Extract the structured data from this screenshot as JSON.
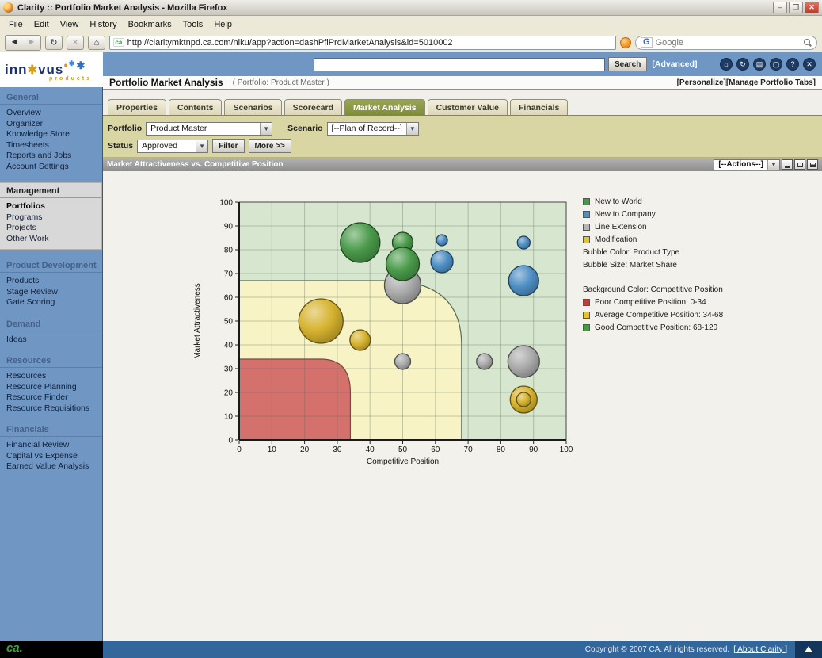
{
  "window": {
    "title": "Clarity :: Portfolio Market Analysis - Mozilla Firefox",
    "controls": {
      "minimize": "–",
      "restore": "❒",
      "close": "✕"
    }
  },
  "menubar": {
    "items": [
      "File",
      "Edit",
      "View",
      "History",
      "Bookmarks",
      "Tools",
      "Help"
    ]
  },
  "toolbar": {
    "url": "http://claritymktnpd.ca.com/niku/app?action=dashPflPrdMarketAnalysis&id=5010002",
    "search_engine": "Google"
  },
  "app_header": {
    "logo_text_left": "inn",
    "logo_text_right": "vus",
    "logo_sub": "products",
    "search_value": "",
    "search_button": "Search",
    "advanced_link": "[Advanced]",
    "icons": [
      "home-icon",
      "refresh-icon",
      "document-icon",
      "window-icon",
      "help-icon",
      "logout-icon"
    ],
    "icon_glyphs": [
      "⌂",
      "↻",
      "▤",
      "▢",
      "?",
      "✕"
    ]
  },
  "page": {
    "title": "Portfolio Market Analysis",
    "subtitle": "( Portfolio: Product Master )",
    "personalize_link": "[Personalize]",
    "manage_link": "[Manage Portfolio Tabs]"
  },
  "sidebar": {
    "sections": [
      {
        "header": "General",
        "items": [
          "Overview",
          "Organizer",
          "Knowledge Store",
          "Timesheets",
          "Reports and Jobs",
          "Account Settings"
        ]
      },
      {
        "header": "Management",
        "highlight": true,
        "active_item": "Portfolios",
        "items": [
          "Portfolios",
          "Programs",
          "Projects",
          "Other Work"
        ]
      },
      {
        "header": "Product Development",
        "items": [
          "Products",
          "Stage Review",
          "Gate Scoring"
        ]
      },
      {
        "header": "Demand",
        "items": [
          "Ideas"
        ]
      },
      {
        "header": "Resources",
        "items": [
          "Resources",
          "Resource Planning",
          "Resource Finder",
          "Resource Requisitions"
        ]
      },
      {
        "header": "Financials",
        "items": [
          "Financial Review",
          "Capital vs Expense",
          "Earned Value Analysis"
        ]
      }
    ]
  },
  "tabs": {
    "active": "Market Analysis",
    "items": [
      "Properties",
      "Contents",
      "Scenarios",
      "Scorecard",
      "Market Analysis",
      "Customer Value",
      "Financials"
    ]
  },
  "filters": {
    "portfolio_label": "Portfolio",
    "portfolio_value": "Product Master",
    "scenario_label": "Scenario",
    "scenario_value": "[--Plan of Record--]",
    "status_label": "Status",
    "status_value": "Approved",
    "filter_button": "Filter",
    "more_button": "More >>"
  },
  "panel": {
    "title": "Market Attractiveness vs. Competitive Position",
    "actions_value": "[--Actions--]",
    "legend": {
      "product_type_items": [
        {
          "label": "New to World",
          "color": "#3f9e3f"
        },
        {
          "label": "New to Company",
          "color": "#4e8fc4"
        },
        {
          "label": "Line Extension",
          "color": "#b5b5b5"
        },
        {
          "label": "Modification",
          "color": "#e3c728"
        }
      ],
      "notes": [
        "Bubble Color: Product Type",
        "Bubble Size: Market Share"
      ],
      "background_title": "Background Color: Competitive Position",
      "background_items": [
        {
          "label": "Poor Competitive Position: 0-34",
          "color": "#c43c35"
        },
        {
          "label": "Average Competitive Position: 34-68",
          "color": "#e8c428"
        },
        {
          "label": "Good Competitive Position: 68-120",
          "color": "#3f9e3f"
        }
      ]
    }
  },
  "chart_data": {
    "type": "scatter",
    "subtype": "bubble",
    "title": "Market Attractiveness vs. Competitive Position",
    "xlabel": "Competitive Position",
    "ylabel": "Market Attractiveness",
    "xlim": [
      0,
      100
    ],
    "ylim": [
      0,
      100
    ],
    "xticks": [
      0,
      10,
      20,
      30,
      40,
      50,
      60,
      70,
      80,
      90,
      100
    ],
    "yticks": [
      0,
      10,
      20,
      30,
      40,
      50,
      60,
      70,
      80,
      90,
      100
    ],
    "grid": true,
    "legend_position": "right",
    "bubble_color_meaning": "Product Type",
    "bubble_size_meaning": "Market Share",
    "background_color_meaning": "Competitive Position",
    "background_regions": [
      {
        "name": "Poor Competitive Position",
        "range": [
          0,
          34
        ],
        "color": "#d4716c",
        "border": "#7a4a42",
        "bounds": {
          "x": 34,
          "y": 34,
          "corner_x": 25,
          "corner_y": 20
        }
      },
      {
        "name": "Average Competitive Position",
        "range": [
          34,
          68
        ],
        "color": "#f7f3c5",
        "border": "#5b6b52",
        "bounds": {
          "x": 68,
          "y": 67,
          "corner_x": 45,
          "corner_y": 40
        }
      },
      {
        "name": "Good Competitive Position",
        "range": [
          68,
          120
        ],
        "color": "#d7e6cf"
      }
    ],
    "series": [
      {
        "name": "New to World",
        "color": "#4a9a4a",
        "points": [
          {
            "x": 37,
            "y": 83,
            "r": 25
          },
          {
            "x": 50,
            "y": 83,
            "r": 13
          },
          {
            "x": 50,
            "y": 74,
            "r": 21
          }
        ]
      },
      {
        "name": "New to Company",
        "color": "#4e8fc4",
        "points": [
          {
            "x": 62,
            "y": 84,
            "r": 7
          },
          {
            "x": 62,
            "y": 75,
            "r": 14
          },
          {
            "x": 87,
            "y": 83,
            "r": 8
          },
          {
            "x": 87,
            "y": 67,
            "r": 19
          }
        ]
      },
      {
        "name": "Line Extension",
        "color": "#ababab",
        "points": [
          {
            "x": 50,
            "y": 65,
            "r": 23
          },
          {
            "x": 50,
            "y": 33,
            "r": 10
          },
          {
            "x": 75,
            "y": 33,
            "r": 10
          },
          {
            "x": 87,
            "y": 33,
            "r": 20
          }
        ]
      },
      {
        "name": "Modification",
        "color": "#d6b32f",
        "points": [
          {
            "x": 25,
            "y": 50,
            "r": 28
          },
          {
            "x": 37,
            "y": 42,
            "r": 13
          },
          {
            "x": 87,
            "y": 17,
            "r": 17
          },
          {
            "x": 87,
            "y": 17,
            "r": 9
          }
        ]
      }
    ],
    "draw_order": [
      2,
      3,
      1,
      0
    ]
  },
  "footer": {
    "logo_text": "ca.",
    "copyright": "Copyright © 2007 CA. All rights reserved.",
    "about_link": "[ About Clarity ]"
  }
}
